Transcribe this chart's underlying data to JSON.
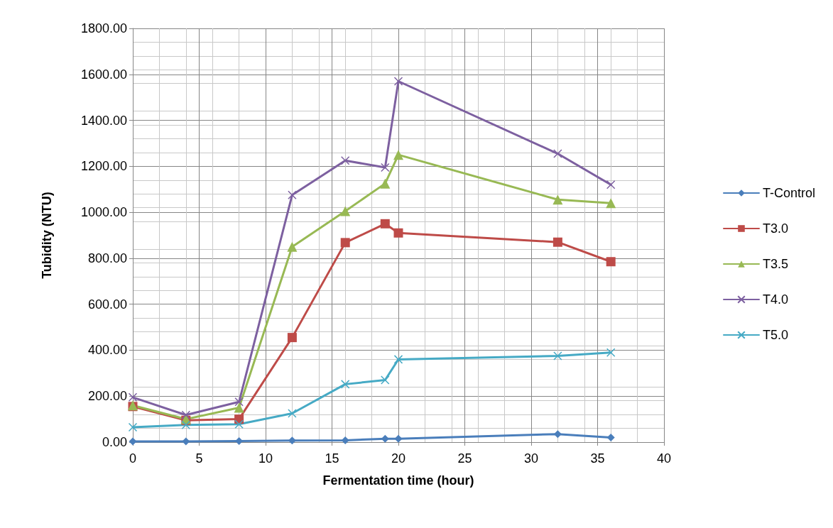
{
  "chart_data": {
    "type": "line",
    "xlabel": "Fermentation time (hour)",
    "ylabel": "Tubidity (NTU)",
    "x": [
      0,
      4,
      8,
      12,
      16,
      19,
      20,
      32,
      36
    ],
    "xlim": [
      0,
      40
    ],
    "xticks": [
      0,
      5,
      10,
      15,
      20,
      25,
      30,
      35,
      40
    ],
    "ylim": [
      0,
      1800
    ],
    "yticks": [
      {
        "value": 0,
        "label": "0.00"
      },
      {
        "value": 200,
        "label": "200.00"
      },
      {
        "value": 400,
        "label": "400.00"
      },
      {
        "value": 600,
        "label": "600.00"
      },
      {
        "value": 800,
        "label": "800.00"
      },
      {
        "value": 1000,
        "label": "1000.00"
      },
      {
        "value": 1200,
        "label": "1200.00"
      },
      {
        "value": 1400,
        "label": "1400.00"
      },
      {
        "value": 1600,
        "label": "1600.00"
      },
      {
        "value": 1800,
        "label": "1800.00"
      }
    ],
    "grid": true,
    "legend": "right",
    "line_style": "solid",
    "series": [
      {
        "name": "T-Control",
        "color": "#4a7ebb",
        "marker": "diamond",
        "values": [
          3,
          3,
          5,
          7,
          8,
          15,
          15,
          35,
          20
        ]
      },
      {
        "name": "T3.0",
        "color": "#be4b48",
        "marker": "square",
        "values": [
          155,
          95,
          100,
          455,
          868,
          950,
          910,
          870,
          785
        ]
      },
      {
        "name": "T3.5",
        "color": "#98b954",
        "marker": "triangle",
        "values": [
          160,
          100,
          150,
          850,
          1005,
          1125,
          1250,
          1055,
          1040
        ]
      },
      {
        "name": "T4.0",
        "color": "#7d60a0",
        "marker": "cross",
        "values": [
          195,
          118,
          175,
          1075,
          1225,
          1195,
          1570,
          1255,
          1120
        ]
      },
      {
        "name": "T5.0",
        "color": "#46aac5",
        "marker": "cross",
        "values": [
          65,
          75,
          78,
          125,
          252,
          270,
          360,
          375,
          390
        ]
      }
    ]
  }
}
